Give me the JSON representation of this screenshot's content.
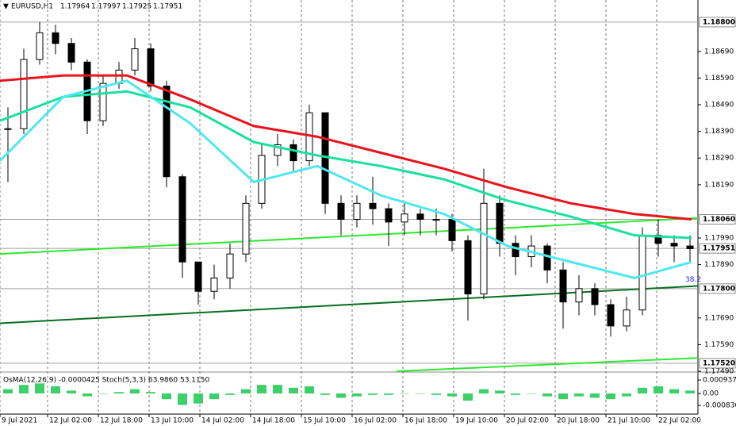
{
  "chart_data": {
    "type": "candlestick",
    "symbol": "EURUSD,H1",
    "quote": [
      "1.17964",
      "1.17997",
      "1.17925",
      "1.17951"
    ],
    "xlim": [
      0,
      220
    ],
    "xticks": [
      {
        "value": 0,
        "label": "9 Jul 2021"
      },
      {
        "value": 15,
        "label": "12 Jul 02:00"
      },
      {
        "value": 31,
        "label": "12 Jul 18:00"
      },
      {
        "value": 47,
        "label": "13 Jul 10:00"
      },
      {
        "value": 63,
        "label": "14 Jul 02:00"
      },
      {
        "value": 79,
        "label": "14 Jul 18:00"
      },
      {
        "value": 95,
        "label": "15 Jul 10:00"
      },
      {
        "value": 111,
        "label": "16 Jul 02:00"
      },
      {
        "value": 127,
        "label": "16 Jul 18:00"
      },
      {
        "value": 143,
        "label": "19 Jul 10:00"
      },
      {
        "value": 159,
        "label": "20 Jul 02:00"
      },
      {
        "value": 175,
        "label": "20 Jul 18:00"
      },
      {
        "value": 191,
        "label": "21 Jul 10:00"
      },
      {
        "value": 207,
        "label": "22 Jul 02:00"
      }
    ],
    "ylim": [
      1.1749,
      1.18883
    ],
    "yticks": [
      {
        "value": 1.1869,
        "label": "1.18690"
      },
      {
        "value": 1.1859,
        "label": "1.18590"
      },
      {
        "value": 1.1849,
        "label": "1.18490"
      },
      {
        "value": 1.1839,
        "label": "1.18390"
      },
      {
        "value": 1.1829,
        "label": "1.18290"
      },
      {
        "value": 1.1819,
        "label": "1.18190"
      },
      {
        "value": 1.1799,
        "label": "1.17990"
      },
      {
        "value": 1.1789,
        "label": "1.17890"
      },
      {
        "value": 1.1769,
        "label": "1.17690"
      },
      {
        "value": 1.1759,
        "label": "1.17590"
      },
      {
        "value": 1.1749,
        "label": "1.17490"
      }
    ],
    "levels": [
      {
        "value": 1.188,
        "label": "1.18800"
      },
      {
        "value": 1.1806,
        "label": "1.18060"
      },
      {
        "value": 1.17951,
        "label": "1.17951"
      },
      {
        "value": 1.178,
        "label": "1.17800"
      },
      {
        "value": 1.1752,
        "label": "1.17520"
      }
    ],
    "fib_label": "38.2",
    "x": [
      2.5,
      7.5,
      12.5,
      17.5,
      22.5,
      27.5,
      32.5,
      37.5,
      42.5,
      47.5,
      52.5,
      57.5,
      62.5,
      67.5,
      72.5,
      77.5,
      82.5,
      87.5,
      92.5,
      97.5,
      102.5,
      107.5,
      112.5,
      117.5,
      122.5,
      127.5,
      132.5,
      137.5,
      142.5,
      147.5,
      152.5,
      157.5,
      162.5,
      167.5,
      172.5,
      177.5,
      182.5,
      187.5,
      192.5,
      197.5,
      202.5,
      207.5,
      212.5,
      217.5
    ],
    "close": [
      1.184,
      1.1866,
      1.1876,
      1.1872,
      1.1865,
      1.1843,
      1.1857,
      1.1862,
      1.187,
      1.1856,
      1.1822,
      1.179,
      1.1779,
      1.1784,
      1.1793,
      1.1812,
      1.183,
      1.1834,
      1.1828,
      1.1846,
      1.1812,
      1.1806,
      1.1812,
      1.181,
      1.1805,
      1.1808,
      1.1806,
      1.1806,
      1.1798,
      1.1778,
      1.1812,
      1.1797,
      1.1792,
      1.1796,
      1.1787,
      1.1775,
      1.178,
      1.1774,
      1.1766,
      1.1772,
      1.18,
      1.1797,
      1.1796,
      1.1795
    ],
    "high": [
      1.1848,
      1.187,
      1.188,
      1.1879,
      1.1874,
      1.1866,
      1.186,
      1.1865,
      1.1874,
      1.1872,
      1.1858,
      1.1823,
      1.179,
      1.1789,
      1.1797,
      1.1815,
      1.1834,
      1.1838,
      1.1836,
      1.1849,
      1.1846,
      1.1815,
      1.1815,
      1.1822,
      1.1812,
      1.1812,
      1.181,
      1.181,
      1.1808,
      1.18,
      1.1825,
      1.1815,
      1.18,
      1.18,
      1.1797,
      1.179,
      1.1785,
      1.1782,
      1.1776,
      1.1777,
      1.1803,
      1.1806,
      1.18,
      1.18
    ],
    "low": [
      1.182,
      1.1838,
      1.1864,
      1.1868,
      1.1862,
      1.1838,
      1.1841,
      1.1855,
      1.186,
      1.1854,
      1.1818,
      1.1784,
      1.1774,
      1.1776,
      1.178,
      1.179,
      1.181,
      1.1826,
      1.1824,
      1.1826,
      1.1808,
      1.18,
      1.1803,
      1.1804,
      1.1796,
      1.18,
      1.18,
      1.18,
      1.1794,
      1.1768,
      1.1776,
      1.1792,
      1.1785,
      1.1788,
      1.1782,
      1.1765,
      1.177,
      1.177,
      1.1762,
      1.1764,
      1.177,
      1.1792,
      1.179,
      1.179
    ],
    "ma_x": [
      0,
      20,
      40,
      60,
      80,
      100,
      120,
      140,
      160,
      180,
      200,
      218
    ],
    "moving_averages": [
      {
        "color": "#e8141c",
        "values": [
          1.1858,
          1.186,
          1.186,
          1.1851,
          1.1841,
          1.1837,
          1.1831,
          1.1825,
          1.1818,
          1.1812,
          1.1808,
          1.1806
        ]
      },
      {
        "color": "#19e0a0",
        "values": [
          1.1843,
          1.1852,
          1.1854,
          1.1848,
          1.1835,
          1.183,
          1.1826,
          1.1821,
          1.1813,
          1.1807,
          1.18,
          1.1799
        ]
      },
      {
        "color": "#4ee8f0",
        "values": [
          1.1828,
          1.1852,
          1.1858,
          1.1842,
          1.182,
          1.1826,
          1.1815,
          1.1808,
          1.1796,
          1.179,
          1.1784,
          1.179
        ]
      }
    ],
    "trendlines": [
      {
        "color": "#2ee82e",
        "x": [
          0,
          220
        ],
        "values": [
          1.1793,
          1.18065
        ]
      },
      {
        "color": "#0a6e1e",
        "x": [
          0,
          220
        ],
        "values": [
          1.1767,
          1.1781
        ]
      },
      {
        "color": "#2ee82e",
        "x": [
          125,
          220
        ],
        "values": [
          1.1749,
          1.1754
        ]
      }
    ],
    "oscillator": {
      "label": "OsMA(12,26,9) -0.0000425  Stoch(5,3,3) 63.9860 53.1150",
      "ylim": [
        -0.00144,
        0.00144
      ],
      "yticks": [
        {
          "value": 0.000937,
          "label": "0.000937"
        },
        {
          "value": 0,
          "label": "0.00"
        },
        {
          "value": -0.00083,
          "label": "-0.000830"
        }
      ],
      "color": "#3cd06a",
      "values": [
        0.0003,
        0.0006,
        0.0007,
        0.0005,
        0.0002,
        -0.0002,
        0,
        0.0001,
        0.0003,
        0.0001,
        -0.0004,
        -0.0008,
        -0.0007,
        -0.0004,
        -0.0001,
        0.0003,
        0.0006,
        0.0006,
        0.0004,
        0.0005,
        -0.0001,
        -0.0003,
        -0.0002,
        -0.0001,
        -0.0001,
        0,
        0,
        -0.0001,
        -0.0002,
        -0.0005,
        0.0003,
        0.0002,
        -0.0001,
        0,
        -0.0002,
        -0.0004,
        -0.0002,
        -0.0003,
        -0.0004,
        -0.0002,
        0.0004,
        0.0005,
        0.0003,
        0.0002
      ]
    }
  }
}
